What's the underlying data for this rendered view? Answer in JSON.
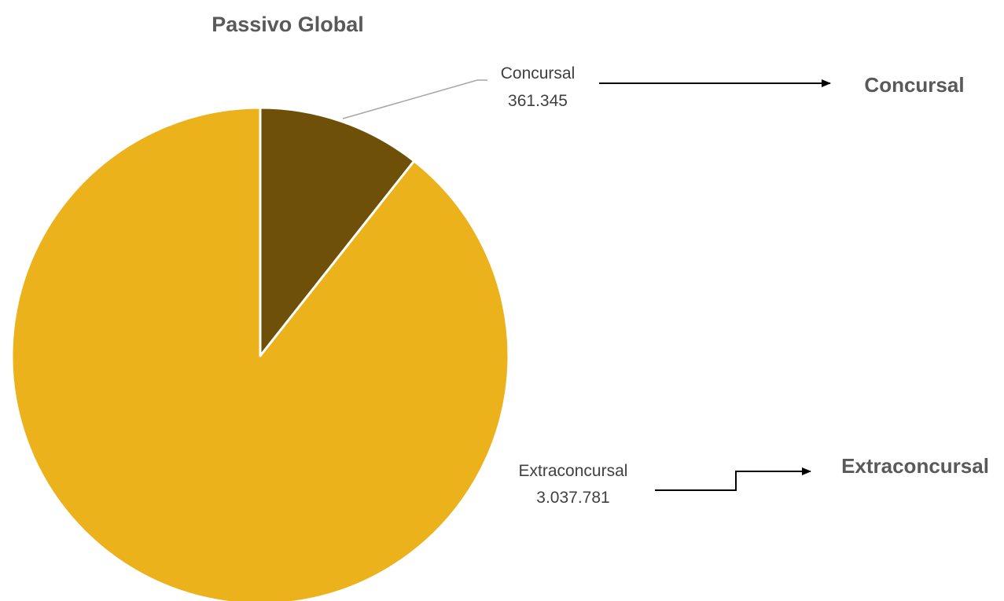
{
  "chart_data": {
    "type": "pie",
    "title": "Passivo Global",
    "slices": [
      {
        "label": "Concursal",
        "value_label": "361.345",
        "value": 361345,
        "color": "#6E5009"
      },
      {
        "label": "Extraconcursal",
        "value_label": "3.037.781",
        "value": 3037781,
        "color": "#ECB21C"
      }
    ],
    "start_angle_deg": 0,
    "direction": "clockwise",
    "legend": "none"
  },
  "annotations": [
    {
      "text": "Concursal",
      "target": "Concursal"
    },
    {
      "text": "Extraconcursal",
      "target": "Extraconcursal"
    }
  ]
}
